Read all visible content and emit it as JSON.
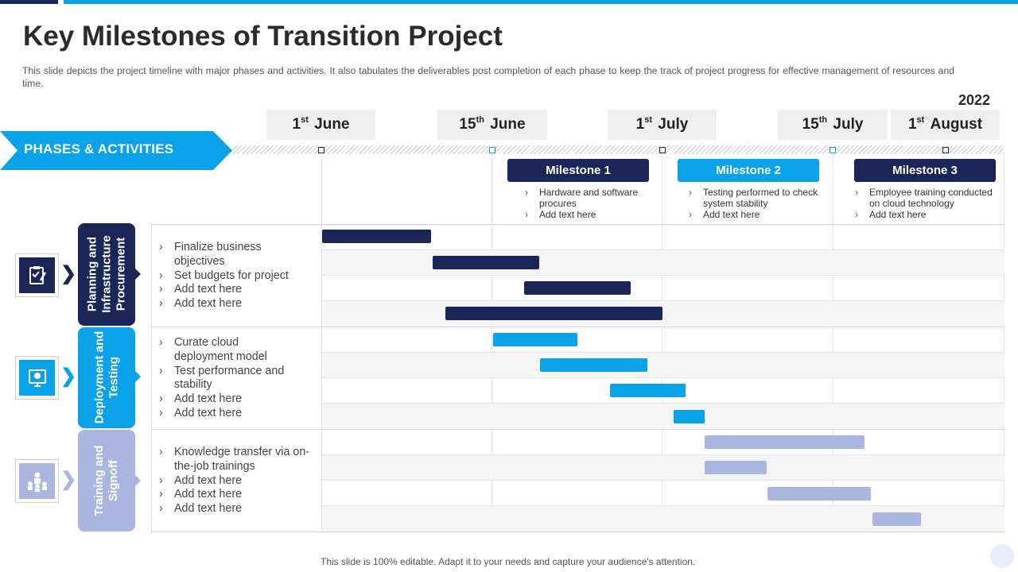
{
  "title": "Key Milestones of Transition Project",
  "subtitle": "This slide depicts the project timeline with major phases and activities. It also tabulates the deliverables  post completion of each phase to keep the track of project progress for effective  management  of resources and time.",
  "year": "2022",
  "dates": [
    {
      "day": "1",
      "suffix": "st",
      "month": "June"
    },
    {
      "day": "15",
      "suffix": "th",
      "month": "June"
    },
    {
      "day": "1",
      "suffix": "st",
      "month": "July"
    },
    {
      "day": "15",
      "suffix": "th",
      "month": "July"
    },
    {
      "day": "1",
      "suffix": "st",
      "month": "August"
    }
  ],
  "phases_header": "PHASES & ACTIVITIES",
  "milestones": [
    {
      "label": "Milestone 1",
      "color": "#1b2656",
      "items": [
        "Hardware and software procures",
        "Add text here"
      ]
    },
    {
      "label": "Milestone 2",
      "color": "#0aa2e8",
      "items": [
        "Testing performed to check system stability",
        "Add text here"
      ]
    },
    {
      "label": "Milestone 3",
      "color": "#1b2656",
      "items": [
        "Employee training conducted on cloud technology",
        "Add text here"
      ]
    }
  ],
  "phases": [
    {
      "name": "Planning and Infrastructure Procurement",
      "color": "#1b2656",
      "icon": "planning-clipboard-icon",
      "activities": [
        "Finalize business objectives",
        "Set budgets for project",
        "Add text here",
        "Add text here"
      ]
    },
    {
      "name": "Deployment and Testing",
      "color": "#0aa2e8",
      "icon": "cloud-deployment-icon",
      "activities": [
        "Curate cloud deployment model",
        "Test performance and stability",
        "Add text here",
        "Add text here"
      ]
    },
    {
      "name": "Training and Signoff",
      "color": "#aab5e0",
      "icon": "training-group-icon",
      "activities": [
        "Knowledge transfer via on-the-job trainings",
        "Add text here",
        "Add text here",
        "Add text here"
      ]
    }
  ],
  "colors": {
    "dark": "#1b2656",
    "blue": "#0aa2e8",
    "light": "#aab5e0"
  },
  "footer": "This slide is 100% editable. Adapt it to your needs and capture your audience's attention."
}
